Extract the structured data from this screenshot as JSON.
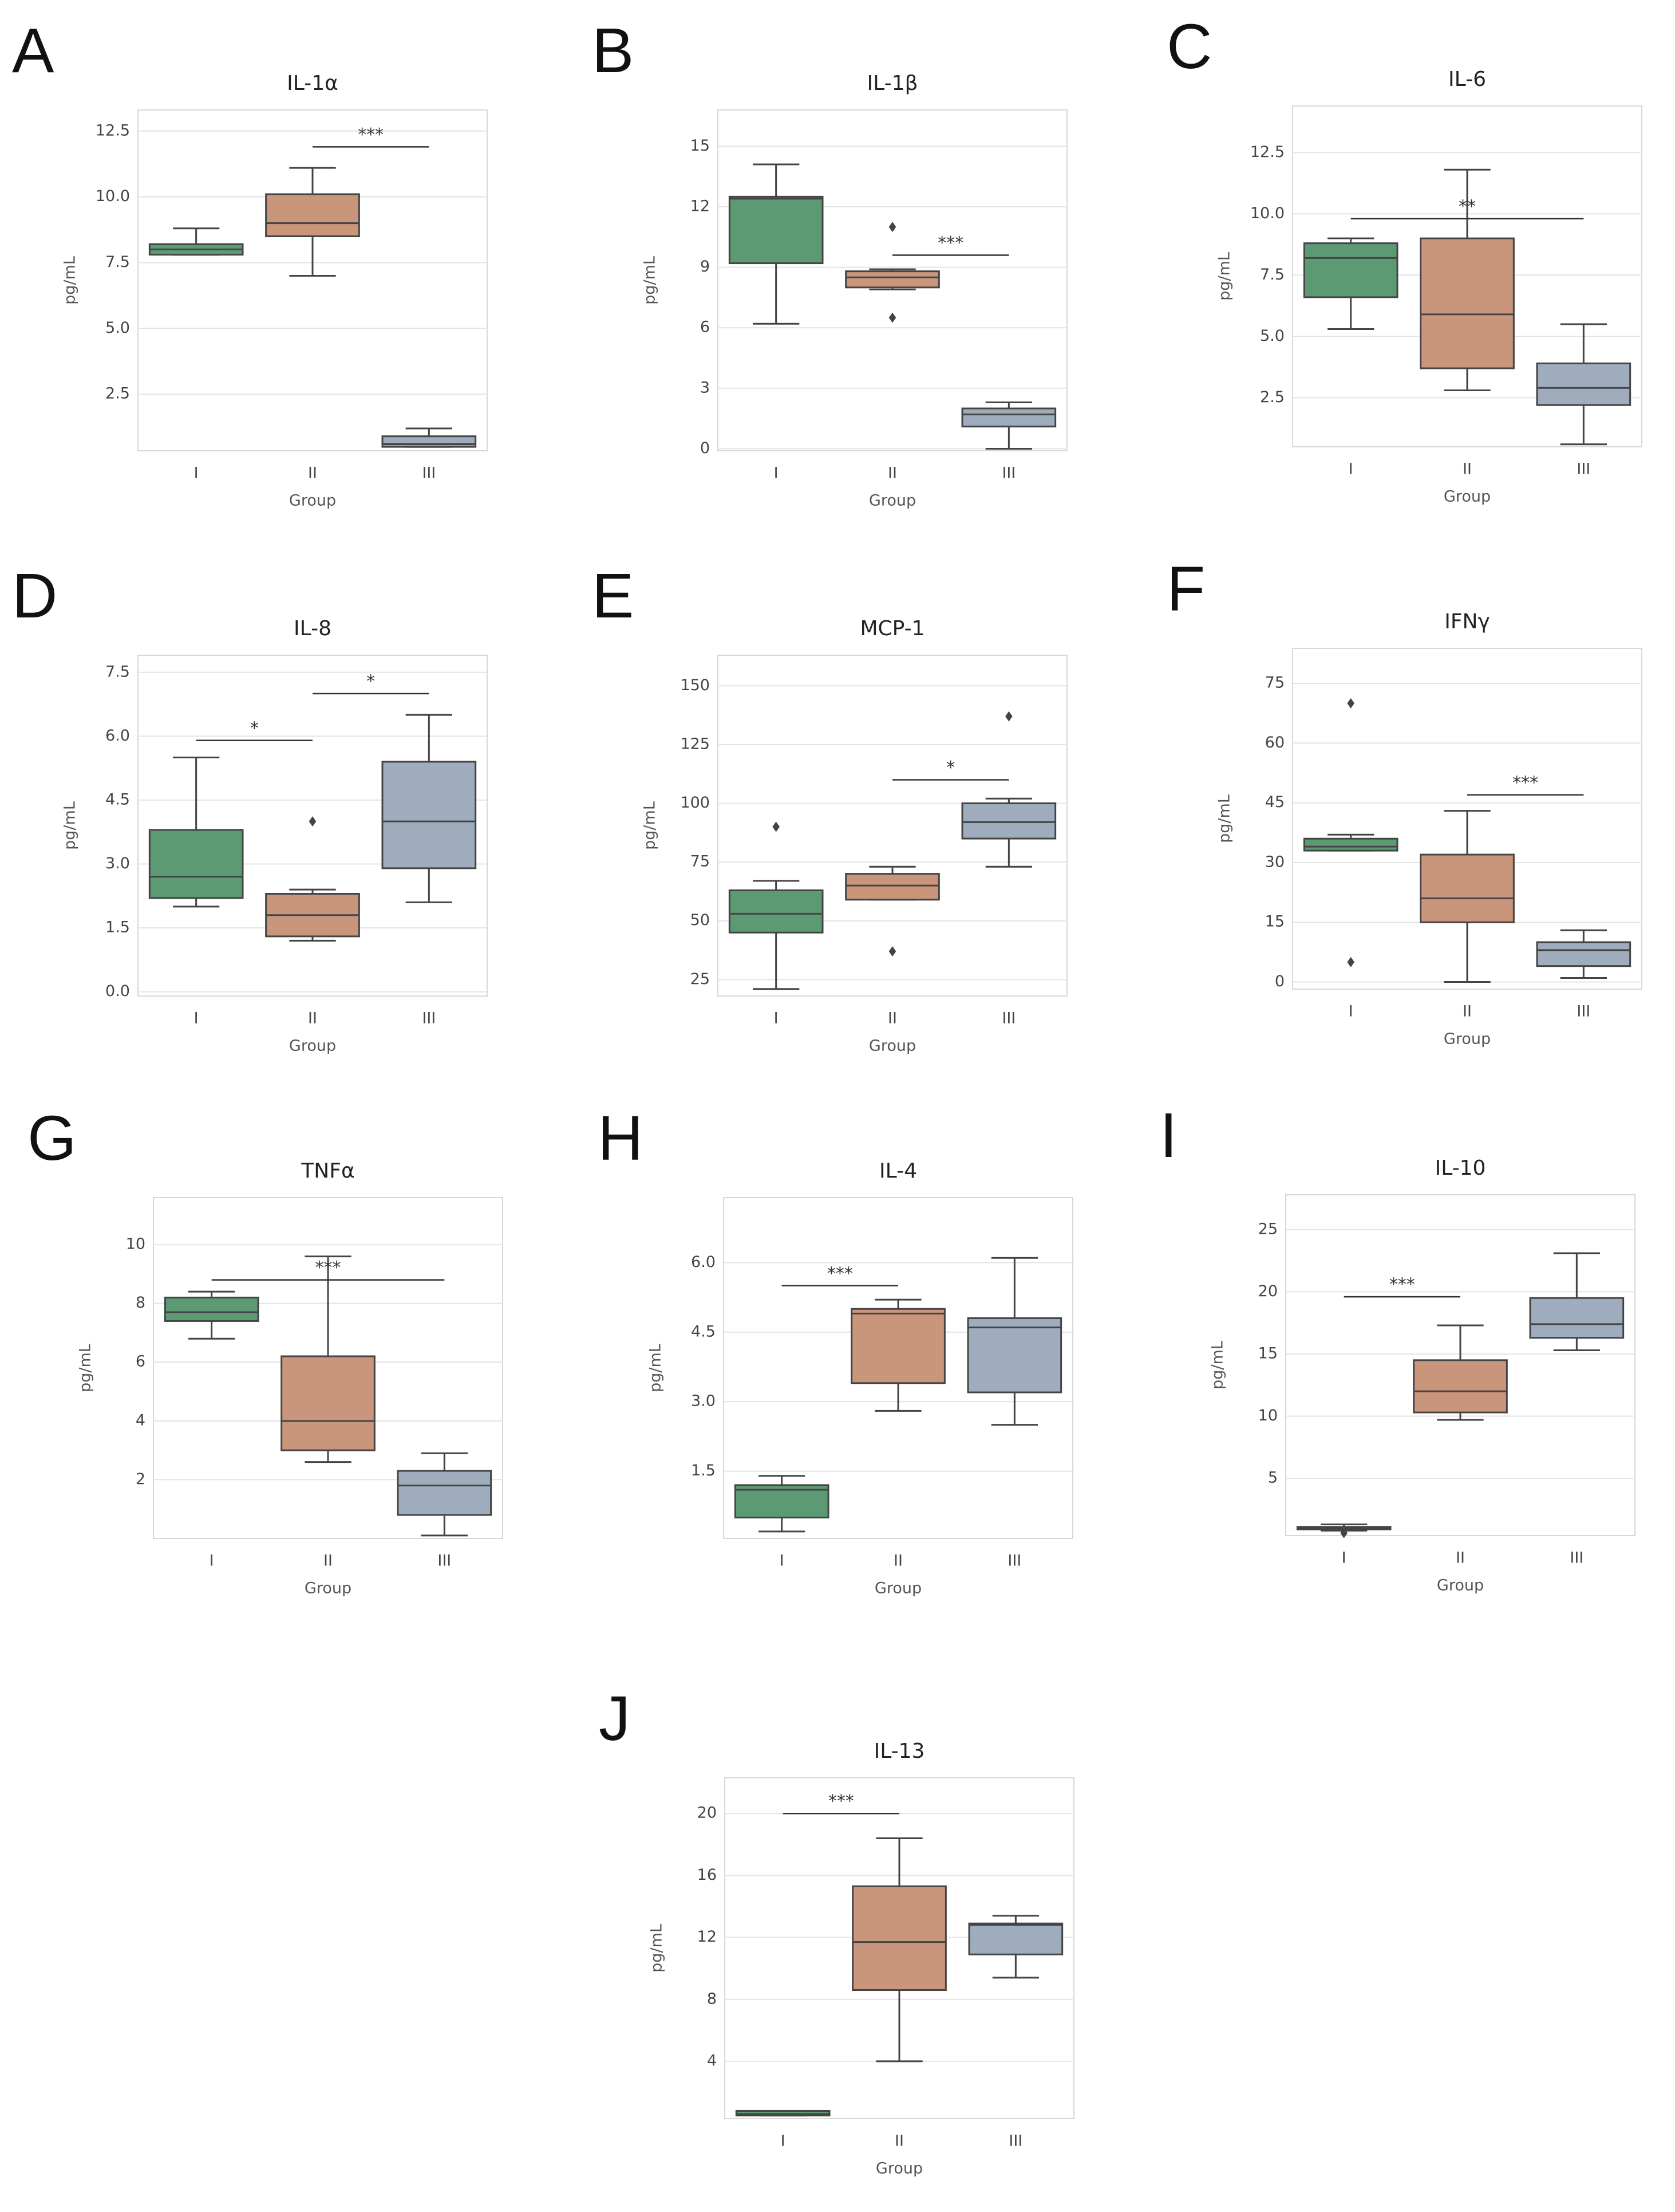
{
  "chart_data": [
    {
      "type": "box",
      "panel": "A",
      "title": "IL-1α",
      "ylabel": "pg/mL",
      "xlabel": "Group",
      "categories": [
        "I",
        "II",
        "III"
      ],
      "colors": [
        "#5c9a74",
        "#c9967b",
        "#9eacbe"
      ],
      "grid": true,
      "ylim": [
        0.35,
        13.3
      ],
      "yticks": [
        2.5,
        {
          "value": 5,
          "label": "5.0"
        },
        7.5,
        {
          "value": 10,
          "label": "10.0"
        },
        12.5
      ],
      "boxes": [
        {
          "low": 7.8,
          "q1": 7.8,
          "median": 8.0,
          "q3": 8.2,
          "high": 8.8,
          "outliers": []
        },
        {
          "low": 7.0,
          "q1": 8.5,
          "median": 9.0,
          "q3": 10.1,
          "high": 11.1,
          "outliers": []
        },
        {
          "low": 0.5,
          "q1": 0.5,
          "median": 0.6,
          "q3": 0.9,
          "high": 1.2,
          "outliers": []
        }
      ],
      "annotations": [
        {
          "text": "***",
          "between": [
            1,
            2
          ],
          "y": 11.9
        }
      ]
    },
    {
      "type": "box",
      "panel": "B",
      "title": "IL-1β",
      "ylabel": "pg/mL",
      "xlabel": "Group",
      "categories": [
        "I",
        "II",
        "III"
      ],
      "colors": [
        "#5c9a74",
        "#c9967b",
        "#9eacbe"
      ],
      "grid": true,
      "ylim": [
        -0.1,
        16.8
      ],
      "yticks": [
        0,
        3,
        6,
        9,
        12,
        15
      ],
      "boxes": [
        {
          "low": 6.2,
          "q1": 9.2,
          "median": 12.4,
          "q3": 12.5,
          "high": 14.1,
          "outliers": []
        },
        {
          "low": 7.9,
          "q1": 8.0,
          "median": 8.5,
          "q3": 8.8,
          "high": 8.9,
          "outliers": [
            11.0,
            6.5
          ]
        },
        {
          "low": 0.0,
          "q1": 1.1,
          "median": 1.7,
          "q3": 2.0,
          "high": 2.3,
          "outliers": []
        }
      ],
      "annotations": [
        {
          "text": "***",
          "between": [
            1,
            2
          ],
          "y": 9.6
        }
      ]
    },
    {
      "type": "box",
      "panel": "C",
      "title": "IL-6",
      "ylabel": "pg/mL",
      "xlabel": "Group",
      "categories": [
        "I",
        "II",
        "III"
      ],
      "colors": [
        "#5c9a74",
        "#c9967b",
        "#9eacbe"
      ],
      "grid": true,
      "ylim": [
        0.5,
        14.4
      ],
      "yticks": [
        2.5,
        {
          "value": 5,
          "label": "5.0"
        },
        7.5,
        {
          "value": 10,
          "label": "10.0"
        },
        12.5
      ],
      "boxes": [
        {
          "low": 5.3,
          "q1": 6.6,
          "median": 8.2,
          "q3": 8.8,
          "high": 9.0,
          "outliers": []
        },
        {
          "low": 2.8,
          "q1": 3.7,
          "median": 5.9,
          "q3": 9.0,
          "high": 11.8,
          "outliers": []
        },
        {
          "low": 0.6,
          "q1": 2.2,
          "median": 2.9,
          "q3": 3.9,
          "high": 5.5,
          "outliers": []
        }
      ],
      "annotations": [
        {
          "text": "**",
          "between": [
            0,
            2
          ],
          "y": 9.8
        }
      ]
    },
    {
      "type": "box",
      "panel": "D",
      "title": "IL-8",
      "ylabel": "pg/mL",
      "xlabel": "Group",
      "categories": [
        "I",
        "II",
        "III"
      ],
      "colors": [
        "#5c9a74",
        "#c9967b",
        "#9eacbe"
      ],
      "grid": true,
      "ylim": [
        -0.1,
        7.9
      ],
      "yticks": [
        {
          "value": 0,
          "label": "0.0"
        },
        1.5,
        {
          "value": 3,
          "label": "3.0"
        },
        4.5,
        {
          "value": 6,
          "label": "6.0"
        },
        7.5
      ],
      "boxes": [
        {
          "low": 2.0,
          "q1": 2.2,
          "median": 2.7,
          "q3": 3.8,
          "high": 5.5,
          "outliers": []
        },
        {
          "low": 1.2,
          "q1": 1.3,
          "median": 1.8,
          "q3": 2.3,
          "high": 2.4,
          "outliers": [
            4.0
          ]
        },
        {
          "low": 2.1,
          "q1": 2.9,
          "median": 4.0,
          "q3": 5.4,
          "high": 6.5,
          "outliers": []
        }
      ],
      "annotations": [
        {
          "text": "*",
          "between": [
            0,
            1
          ],
          "y": 5.9
        },
        {
          "text": "*",
          "between": [
            1,
            2
          ],
          "y": 7.0
        }
      ]
    },
    {
      "type": "box",
      "panel": "E",
      "title": "MCP-1",
      "ylabel": "pg/mL",
      "xlabel": "Group",
      "categories": [
        "I",
        "II",
        "III"
      ],
      "colors": [
        "#5c9a74",
        "#c9967b",
        "#9eacbe"
      ],
      "grid": true,
      "ylim": [
        18,
        163
      ],
      "yticks": [
        25,
        50,
        75,
        100,
        125,
        150
      ],
      "boxes": [
        {
          "low": 21,
          "q1": 45,
          "median": 53,
          "q3": 63,
          "high": 67,
          "outliers": [
            90
          ]
        },
        {
          "low": 59,
          "q1": 59,
          "median": 65,
          "q3": 70,
          "high": 73,
          "outliers": [
            37
          ]
        },
        {
          "low": 73,
          "q1": 85,
          "median": 92,
          "q3": 100,
          "high": 102,
          "outliers": [
            137
          ]
        }
      ],
      "annotations": [
        {
          "text": "*",
          "between": [
            1,
            2
          ],
          "y": 110
        }
      ]
    },
    {
      "type": "box",
      "panel": "F",
      "title": "IFNγ",
      "ylabel": "pg/mL",
      "xlabel": "Group",
      "categories": [
        "I",
        "II",
        "III"
      ],
      "colors": [
        "#5c9a74",
        "#c9967b",
        "#9eacbe"
      ],
      "grid": true,
      "ylim": [
        -1.8,
        83.8
      ],
      "yticks": [
        0,
        15,
        30,
        45,
        60,
        75
      ],
      "boxes": [
        {
          "low": 33,
          "q1": 33,
          "median": 34,
          "q3": 36,
          "high": 37,
          "outliers": [
            70,
            5
          ]
        },
        {
          "low": 0,
          "q1": 15,
          "median": 21,
          "q3": 32,
          "high": 43,
          "outliers": []
        },
        {
          "low": 1,
          "q1": 4,
          "median": 8,
          "q3": 10,
          "high": 13,
          "outliers": []
        }
      ],
      "annotations": [
        {
          "text": "***",
          "between": [
            1,
            2
          ],
          "y": 47
        }
      ]
    },
    {
      "type": "box",
      "panel": "G",
      "title": "TNFα",
      "ylabel": "pg/mL",
      "xlabel": "Group",
      "categories": [
        "I",
        "II",
        "III"
      ],
      "colors": [
        "#5c9a74",
        "#c9967b",
        "#9eacbe"
      ],
      "grid": true,
      "ylim": [
        0,
        11.6
      ],
      "yticks": [
        2,
        4,
        6,
        8,
        10
      ],
      "boxes": [
        {
          "low": 6.8,
          "q1": 7.4,
          "median": 7.7,
          "q3": 8.2,
          "high": 8.4,
          "outliers": []
        },
        {
          "low": 2.6,
          "q1": 3.0,
          "median": 4.0,
          "q3": 6.2,
          "high": 9.6,
          "outliers": []
        },
        {
          "low": 0.1,
          "q1": 0.8,
          "median": 1.8,
          "q3": 2.3,
          "high": 2.9,
          "outliers": []
        }
      ],
      "annotations": [
        {
          "text": "***",
          "between": [
            0,
            2
          ],
          "y": 8.8
        }
      ]
    },
    {
      "type": "box",
      "panel": "H",
      "title": "IL-4",
      "ylabel": "pg/mL",
      "xlabel": "Group",
      "categories": [
        "I",
        "II",
        "III"
      ],
      "colors": [
        "#5c9a74",
        "#c9967b",
        "#9eacbe"
      ],
      "grid": true,
      "ylim": [
        0.05,
        7.4
      ],
      "yticks": [
        1.5,
        {
          "value": 3,
          "label": "3.0"
        },
        4.5,
        {
          "value": 6,
          "label": "6.0"
        }
      ],
      "boxes": [
        {
          "low": 0.2,
          "q1": 0.5,
          "median": 1.1,
          "q3": 1.2,
          "high": 1.4,
          "outliers": []
        },
        {
          "low": 2.8,
          "q1": 3.4,
          "median": 4.9,
          "q3": 5.0,
          "high": 5.2,
          "outliers": []
        },
        {
          "low": 2.5,
          "q1": 3.2,
          "median": 4.6,
          "q3": 4.8,
          "high": 6.1,
          "outliers": []
        }
      ],
      "annotations": [
        {
          "text": "***",
          "between": [
            0,
            1
          ],
          "y": 5.5
        }
      ]
    },
    {
      "type": "box",
      "panel": "I",
      "title": "IL-10",
      "ylabel": "pg/mL",
      "xlabel": "Group",
      "categories": [
        "I",
        "II",
        "III"
      ],
      "colors": [
        "#5c9a74",
        "#c9967b",
        "#9eacbe"
      ],
      "grid": true,
      "ylim": [
        0.4,
        27.8
      ],
      "yticks": [
        5,
        10,
        15,
        20,
        25
      ],
      "boxes": [
        {
          "low": 0.8,
          "q1": 0.9,
          "median": 1.0,
          "q3": 1.1,
          "high": 1.3,
          "outliers": [
            0.6
          ]
        },
        {
          "low": 9.7,
          "q1": 10.3,
          "median": 12.0,
          "q3": 14.5,
          "high": 17.3,
          "outliers": []
        },
        {
          "low": 15.3,
          "q1": 16.3,
          "median": 17.4,
          "q3": 19.5,
          "high": 23.1,
          "outliers": []
        }
      ],
      "annotations": [
        {
          "text": "***",
          "between": [
            0,
            1
          ],
          "y": 19.6
        }
      ]
    },
    {
      "type": "box",
      "panel": "J",
      "title": "IL-13",
      "ylabel": "pg/mL",
      "xlabel": "Group",
      "categories": [
        "I",
        "II",
        "III"
      ],
      "colors": [
        "#5c9a74",
        "#c9967b",
        "#9eacbe"
      ],
      "grid": true,
      "ylim": [
        0.3,
        22.3
      ],
      "yticks": [
        4,
        8,
        12,
        16,
        20
      ],
      "boxes": [
        {
          "low": 0.5,
          "q1": 0.5,
          "median": 0.6,
          "q3": 0.8,
          "high": 0.8,
          "outliers": []
        },
        {
          "low": 4.0,
          "q1": 8.6,
          "median": 11.7,
          "q3": 15.3,
          "high": 18.4,
          "outliers": []
        },
        {
          "low": 9.4,
          "q1": 10.9,
          "median": 12.8,
          "q3": 12.9,
          "high": 13.4,
          "outliers": []
        }
      ],
      "annotations": [
        {
          "text": "***",
          "between": [
            0,
            1
          ],
          "y": 20.0
        }
      ]
    }
  ]
}
